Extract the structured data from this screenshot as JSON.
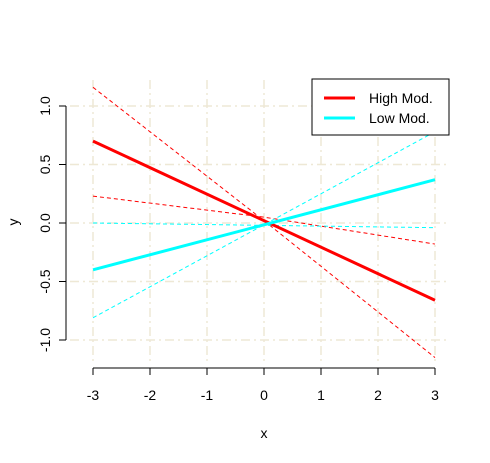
{
  "chart_data": {
    "type": "line",
    "xlabel": "x",
    "ylabel": "y",
    "xlim": [
      -3,
      3
    ],
    "ylim": [
      -1,
      1
    ],
    "x_ticks": [
      "-3",
      "-2",
      "-1",
      "0",
      "1",
      "2",
      "3"
    ],
    "y_ticks": [
      "-1.0",
      "-0.5",
      "0.0",
      "0.5",
      "1.0"
    ],
    "grid": true,
    "grid_color": "#eee8d5",
    "legend_position": "top-right",
    "series": [
      {
        "name": "High Mod.",
        "color": "#ff0000",
        "values": [
          [
            -3,
            0.7
          ],
          [
            3,
            -0.66
          ]
        ],
        "lower": [
          [
            -3,
            0.23
          ],
          [
            0,
            0.05
          ],
          [
            3,
            -0.18
          ]
        ],
        "upper": [
          [
            -3,
            1.16
          ],
          [
            0,
            0.02
          ],
          [
            3,
            -1.15
          ]
        ]
      },
      {
        "name": "Low Mod.",
        "color": "#00ffff",
        "values": [
          [
            -3,
            -0.4
          ],
          [
            3,
            0.37
          ]
        ],
        "lower": [
          [
            -3,
            0.0
          ],
          [
            3,
            -0.04
          ]
        ],
        "upper": [
          [
            -3,
            -0.81
          ],
          [
            3,
            0.78
          ]
        ]
      }
    ]
  }
}
